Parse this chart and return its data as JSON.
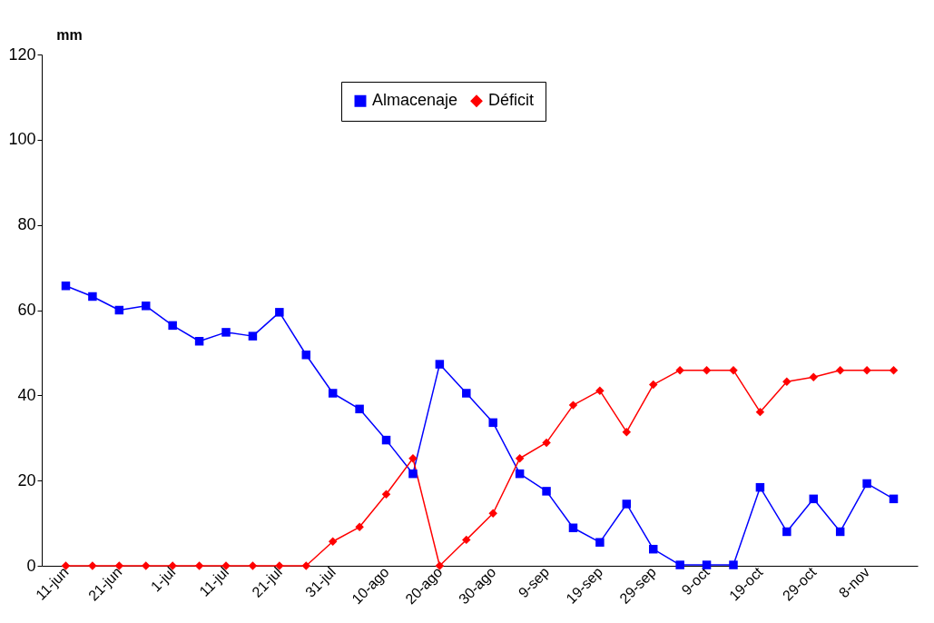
{
  "chart_data": {
    "type": "line",
    "ylabel": "mm",
    "categories": [
      "11-jun",
      null,
      "21-jun",
      null,
      "1-jul",
      null,
      "11-jul",
      null,
      "21-jul",
      null,
      "31-jul",
      null,
      "10-ago",
      null,
      "20-ago",
      null,
      "30-ago",
      null,
      "9-sep",
      null,
      "19-sep",
      null,
      "29-sep",
      null,
      "9-oct",
      null,
      "19-oct",
      null,
      "29-oct",
      null,
      "8-nov",
      null
    ],
    "series": [
      {
        "name": "Almacenaje",
        "color": "#0000ff",
        "marker": "square",
        "values": [
          65.7,
          63.2,
          60,
          61,
          56.4,
          52.7,
          54.8,
          53.9,
          59.5,
          49.5,
          40.5,
          36.8,
          29.5,
          21.6,
          47.3,
          40.5,
          33.6,
          21.6,
          17.5,
          8.9,
          5.5,
          14.5,
          3.9,
          0.2,
          0.2,
          0.2,
          18.4,
          8,
          15.7,
          8,
          19.3,
          15.7
        ]
      },
      {
        "name": "Déficit",
        "color": "#ff0000",
        "marker": "diamond",
        "values": [
          0,
          0,
          0,
          0,
          0,
          0,
          0,
          0,
          0,
          0,
          5.7,
          9.1,
          16.8,
          25.2,
          0,
          6.1,
          12.3,
          25.2,
          28.9,
          37.7,
          41.1,
          31.4,
          42.5,
          45.9,
          45.9,
          45.9,
          36.1,
          43.2,
          44.3,
          45.9,
          45.9,
          45.9
        ]
      }
    ],
    "ylim": [
      0,
      120
    ],
    "yticks": [
      0,
      20,
      40,
      60,
      80,
      100,
      120
    ],
    "grid": false,
    "legend": "top",
    "line_style": "solid"
  }
}
